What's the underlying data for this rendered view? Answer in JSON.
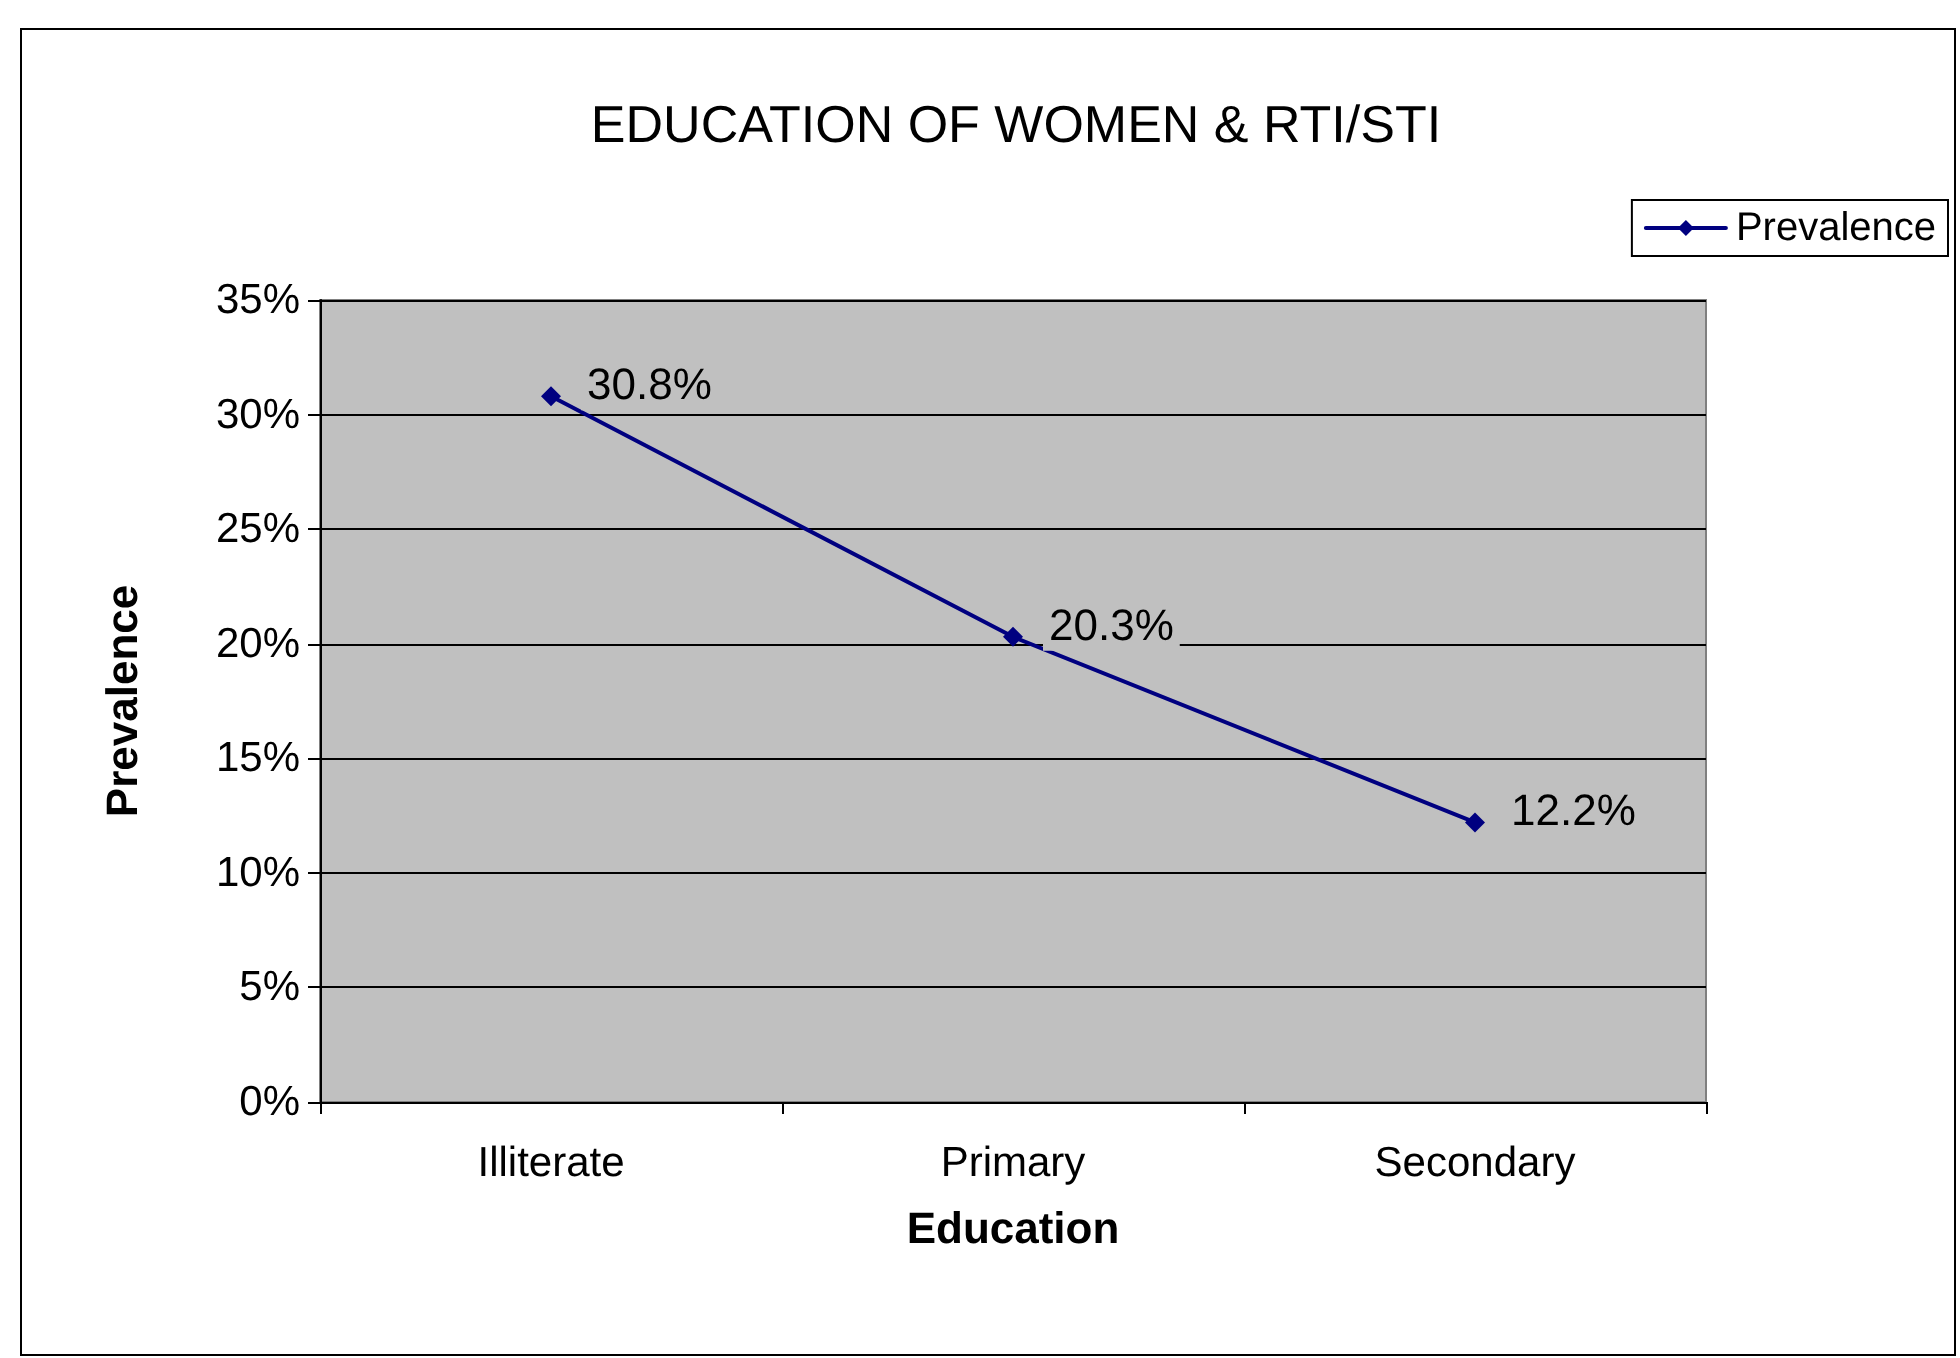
{
  "chart_data": {
    "type": "line",
    "title": "EDUCATION OF WOMEN & RTI/STI",
    "xlabel": "Education",
    "ylabel": "Prevalence",
    "categories": [
      "Illiterate",
      "Primary",
      "Secondary"
    ],
    "series": [
      {
        "name": "Prevalence",
        "color": "#000080",
        "values": [
          30.8,
          20.3,
          12.2
        ],
        "value_labels": [
          "30.8%",
          "20.3%",
          "12.2%"
        ]
      }
    ],
    "ylim": [
      0,
      35
    ],
    "yticks": [
      {
        "value": 0,
        "label": "0%"
      },
      {
        "value": 5,
        "label": "5%"
      },
      {
        "value": 10,
        "label": "10%"
      },
      {
        "value": 15,
        "label": "15%"
      },
      {
        "value": 20,
        "label": "20%"
      },
      {
        "value": 25,
        "label": "25%"
      },
      {
        "value": 30,
        "label": "30%"
      },
      {
        "value": 35,
        "label": "35%"
      }
    ],
    "grid": "y",
    "legend": "top right",
    "marker": "diamond",
    "line_style": "solid"
  }
}
